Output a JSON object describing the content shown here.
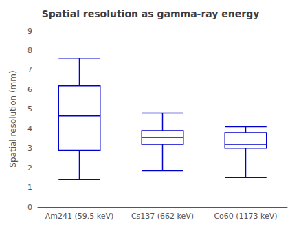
{
  "chart_data": {
    "type": "boxplot",
    "title": "Spatial resolution as gamma-ray energy",
    "ylabel": "Spatial resolution (mm)",
    "categories": [
      "Am241 (59.5 keV)",
      "Cs137 (662 keV)",
      "Co60 (1173 keV)"
    ],
    "boxes": [
      {
        "whisker_low": 1.4,
        "q1": 2.9,
        "median": 4.65,
        "q3": 6.2,
        "whisker_high": 7.6
      },
      {
        "whisker_low": 1.85,
        "q1": 3.2,
        "median": 3.55,
        "q3": 3.9,
        "whisker_high": 4.8
      },
      {
        "whisker_low": 1.5,
        "q1": 3.0,
        "median": 3.2,
        "q3": 3.8,
        "whisker_high": 4.1
      }
    ],
    "color": "#0000cc",
    "ylim": [
      0,
      9
    ],
    "yticks": [
      0,
      1,
      2,
      3,
      4,
      5,
      6,
      7,
      8,
      9
    ],
    "grid": false
  }
}
